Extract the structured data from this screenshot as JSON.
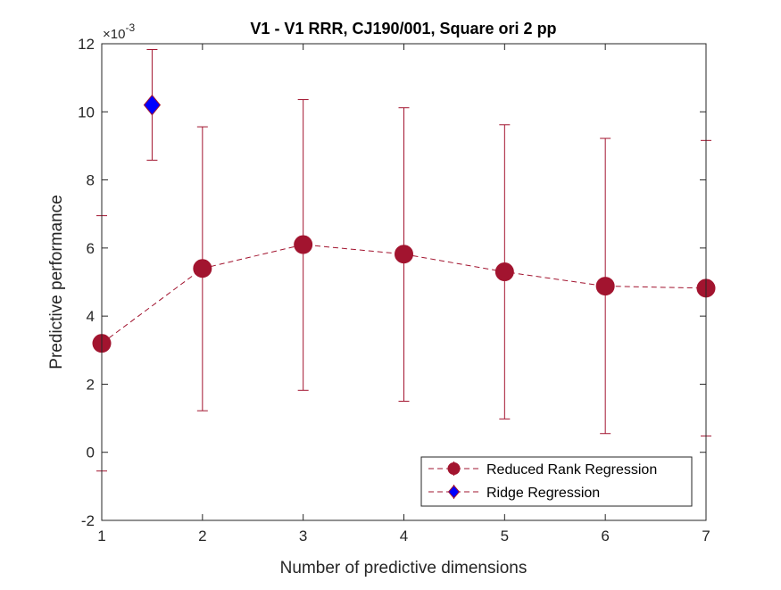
{
  "chart_data": {
    "type": "line",
    "title": "V1 - V1 RRR, CJ190/001, Square ori 2 pp",
    "xlabel": "Number of predictive dimensions",
    "ylabel": "Predictive performance",
    "y_exponent_label": "×10",
    "y_exponent_power": "-3",
    "xlim": [
      1,
      7
    ],
    "ylim": [
      -2,
      12
    ],
    "xticks": [
      "1",
      "2",
      "3",
      "4",
      "5",
      "6",
      "7"
    ],
    "yticks": [
      "-2",
      "0",
      "2",
      "4",
      "6",
      "8",
      "10",
      "12"
    ],
    "grid": false,
    "legend_placement": "bottom-right",
    "series": [
      {
        "name": "Reduced Rank Regression",
        "color": "#A2142F",
        "marker": "circle",
        "line_style": "dashed",
        "x": [
          1,
          2,
          3,
          4,
          5,
          6,
          7
        ],
        "y": [
          3.2,
          5.4,
          6.1,
          5.82,
          5.3,
          4.88,
          4.82
        ],
        "err_low": [
          -0.55,
          1.22,
          1.82,
          1.5,
          0.98,
          0.55,
          0.48
        ],
        "err_high": [
          6.95,
          9.56,
          10.36,
          10.12,
          9.62,
          9.22,
          9.16
        ]
      },
      {
        "name": "Ridge Regression",
        "color": "#0000FF",
        "edge_color": "#A2142F",
        "marker": "diamond",
        "line_style": "dashed",
        "x": [
          1.5
        ],
        "y": [
          10.2
        ],
        "err_low": [
          8.58
        ],
        "err_high": [
          11.83
        ]
      }
    ]
  }
}
